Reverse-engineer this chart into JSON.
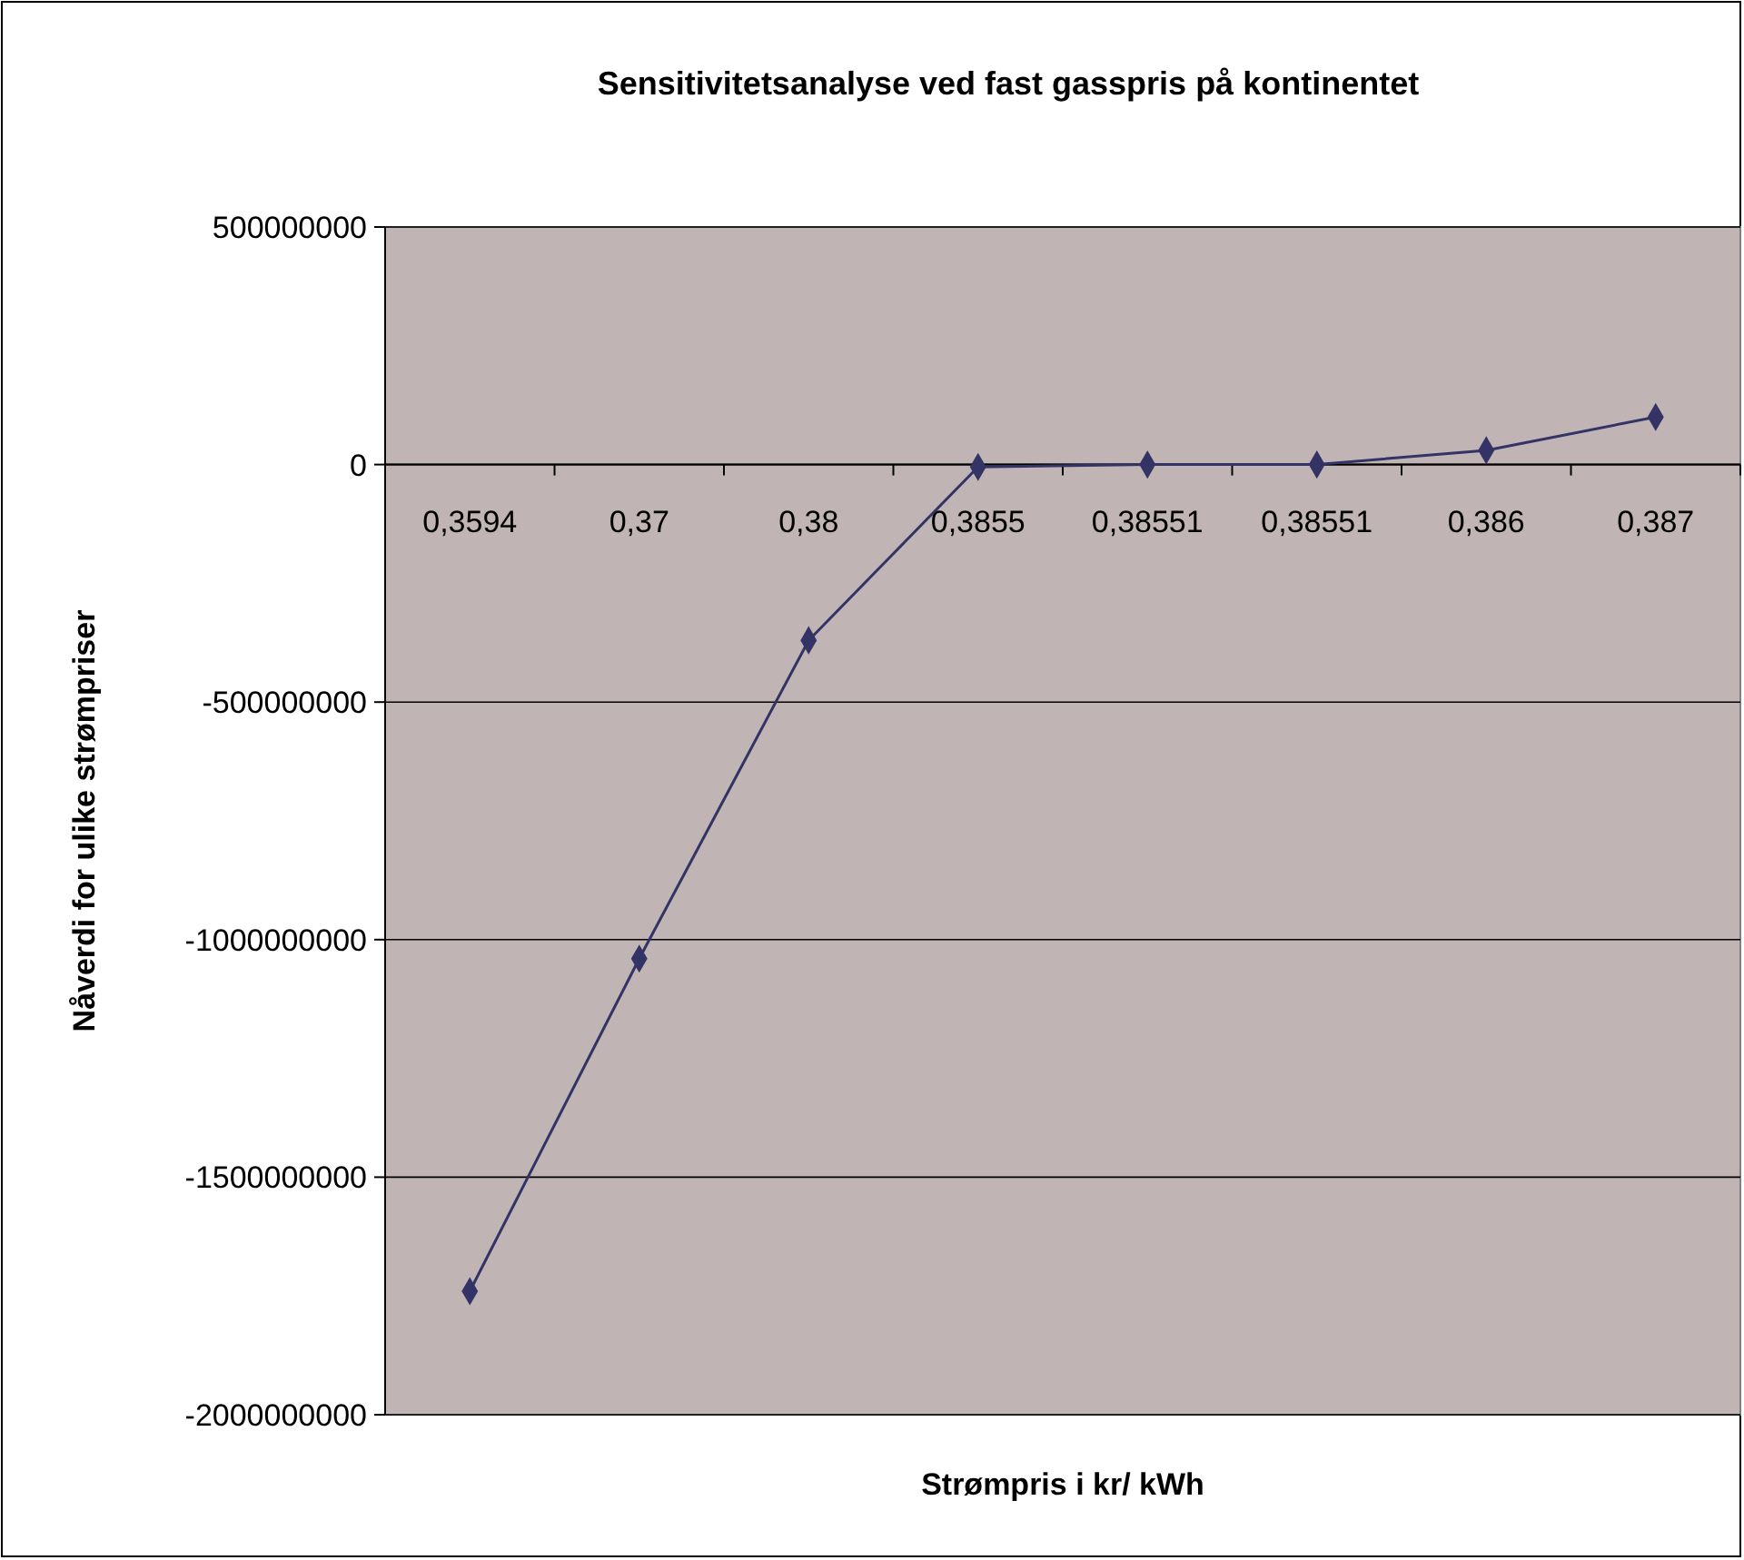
{
  "chart_data": {
    "type": "line",
    "title": "Sensitivitetsanalyse ved fast gasspris på kontinentet",
    "xlabel": "Strømpris i kr/ kWh",
    "ylabel": "Nåverdi for ulike strømpriser",
    "categories": [
      "0,3594",
      "0,37",
      "0,38",
      "0,3855",
      "0,38551",
      "0,38551",
      "0,386",
      "0,387"
    ],
    "series": [
      {
        "color": "#333366",
        "values": [
          -1740000000,
          -1040000000,
          -370000000,
          -5000000,
          0,
          0,
          30000000,
          100000000
        ]
      }
    ],
    "ylim": [
      -2000000000,
      500000000
    ],
    "yticks": [
      -2000000000,
      -1500000000,
      -1000000000,
      -500000000,
      0,
      500000000
    ],
    "grid": "y",
    "marker": "diamond",
    "line_style": "solid"
  }
}
